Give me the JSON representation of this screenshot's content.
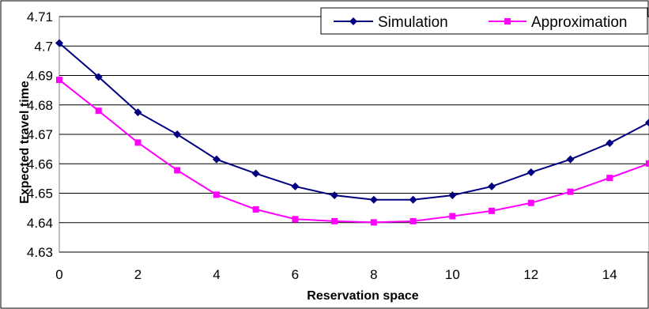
{
  "chart_data": {
    "type": "line",
    "title": "",
    "xlabel": "Reservation space",
    "ylabel": "Expected travel time",
    "xlim": [
      0,
      15
    ],
    "ylim": [
      4.63,
      4.71
    ],
    "x_ticks": [
      "0",
      "2",
      "4",
      "6",
      "8",
      "10",
      "12",
      "14"
    ],
    "y_ticks": [
      "4.63",
      "4.64",
      "4.65",
      "4.66",
      "4.67",
      "4.68",
      "4.69",
      "4.7",
      "4.71"
    ],
    "grid": "horizontal",
    "legend_position": "top-right",
    "x": [
      0,
      1,
      2,
      3,
      4,
      5,
      6,
      7,
      8,
      9,
      10,
      11,
      12,
      13,
      14,
      15
    ],
    "series": [
      {
        "name": "Simulation",
        "color": "#000080",
        "marker": "diamond",
        "values": [
          4.701,
          4.6895,
          4.6775,
          4.67,
          4.6615,
          4.6567,
          4.6523,
          4.6493,
          4.6478,
          4.6478,
          4.6493,
          4.6523,
          4.6571,
          4.6615,
          4.667,
          4.674
        ]
      },
      {
        "name": "Approximation",
        "color": "#FF00FF",
        "marker": "square",
        "values": [
          4.6885,
          4.678,
          4.6672,
          4.6578,
          4.6495,
          4.6445,
          4.6412,
          4.6405,
          4.6401,
          4.6405,
          4.6422,
          4.644,
          4.6467,
          4.6505,
          4.6552,
          4.6601
        ]
      }
    ]
  }
}
